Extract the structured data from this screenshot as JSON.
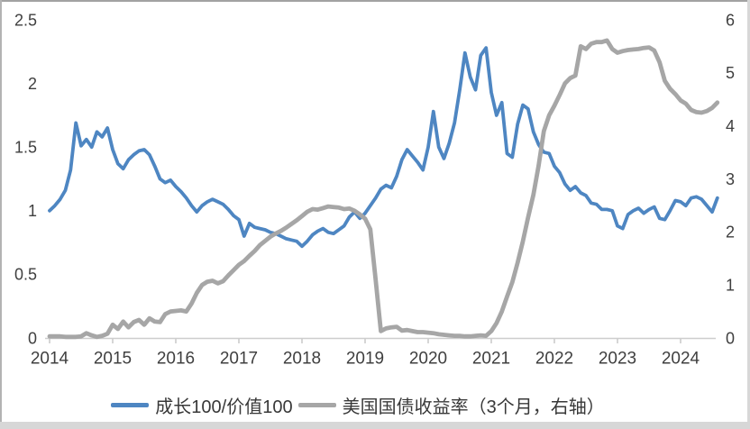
{
  "chart_data": {
    "type": "line",
    "title": "",
    "grid": false,
    "legend_position": "bottom",
    "frequency": "monthly",
    "x": [
      "2014-01",
      "2014-02",
      "2014-03",
      "2014-04",
      "2014-05",
      "2014-06",
      "2014-07",
      "2014-08",
      "2014-09",
      "2014-10",
      "2014-11",
      "2014-12",
      "2015-01",
      "2015-02",
      "2015-03",
      "2015-04",
      "2015-05",
      "2015-06",
      "2015-07",
      "2015-08",
      "2015-09",
      "2015-10",
      "2015-11",
      "2015-12",
      "2016-01",
      "2016-02",
      "2016-03",
      "2016-04",
      "2016-05",
      "2016-06",
      "2016-07",
      "2016-08",
      "2016-09",
      "2016-10",
      "2016-11",
      "2016-12",
      "2017-01",
      "2017-02",
      "2017-03",
      "2017-04",
      "2017-05",
      "2017-06",
      "2017-07",
      "2017-08",
      "2017-09",
      "2017-10",
      "2017-11",
      "2017-12",
      "2018-01",
      "2018-02",
      "2018-03",
      "2018-04",
      "2018-05",
      "2018-06",
      "2018-07",
      "2018-08",
      "2018-09",
      "2018-10",
      "2018-11",
      "2018-12",
      "2019-01",
      "2019-02",
      "2019-03",
      "2019-04",
      "2019-05",
      "2019-06",
      "2019-07",
      "2019-08",
      "2019-09",
      "2019-10",
      "2019-11",
      "2019-12",
      "2020-01",
      "2020-02",
      "2020-03",
      "2020-04",
      "2020-05",
      "2020-06",
      "2020-07",
      "2020-08",
      "2020-09",
      "2020-10",
      "2020-11",
      "2020-12",
      "2021-01",
      "2021-02",
      "2021-03",
      "2021-04",
      "2021-05",
      "2021-06",
      "2021-07",
      "2021-08",
      "2021-09",
      "2021-10",
      "2021-11",
      "2021-12",
      "2022-01",
      "2022-02",
      "2022-03",
      "2022-04",
      "2022-05",
      "2022-06",
      "2022-07",
      "2022-08",
      "2022-09",
      "2022-10",
      "2022-11",
      "2022-12",
      "2023-01",
      "2023-02",
      "2023-03",
      "2023-04",
      "2023-05",
      "2023-06",
      "2023-07",
      "2023-08",
      "2023-09",
      "2023-10",
      "2023-11",
      "2023-12",
      "2024-01",
      "2024-02",
      "2024-03",
      "2024-04",
      "2024-05",
      "2024-06",
      "2024-07",
      "2024-08"
    ],
    "series": [
      {
        "name": "成长100/价值100",
        "axis": "left",
        "color": "#4e86c2",
        "stroke_width": 3.8,
        "values": [
          1.0,
          1.04,
          1.09,
          1.16,
          1.32,
          1.69,
          1.51,
          1.56,
          1.5,
          1.62,
          1.58,
          1.65,
          1.48,
          1.37,
          1.33,
          1.4,
          1.44,
          1.47,
          1.48,
          1.44,
          1.35,
          1.25,
          1.22,
          1.24,
          1.19,
          1.15,
          1.1,
          1.04,
          0.99,
          1.04,
          1.07,
          1.09,
          1.07,
          1.05,
          1.01,
          0.96,
          0.93,
          0.8,
          0.9,
          0.87,
          0.86,
          0.85,
          0.83,
          0.82,
          0.8,
          0.78,
          0.77,
          0.76,
          0.72,
          0.76,
          0.81,
          0.84,
          0.86,
          0.83,
          0.82,
          0.85,
          0.88,
          0.95,
          0.99,
          0.94,
          0.98,
          1.04,
          1.1,
          1.17,
          1.2,
          1.18,
          1.27,
          1.4,
          1.48,
          1.43,
          1.38,
          1.32,
          1.5,
          1.78,
          1.5,
          1.41,
          1.53,
          1.69,
          1.95,
          2.24,
          2.05,
          1.95,
          2.22,
          2.28,
          1.93,
          1.75,
          1.85,
          1.45,
          1.42,
          1.68,
          1.83,
          1.8,
          1.62,
          1.52,
          1.46,
          1.45,
          1.35,
          1.3,
          1.21,
          1.16,
          1.19,
          1.14,
          1.12,
          1.06,
          1.05,
          1.01,
          1.01,
          1.0,
          0.88,
          0.86,
          0.97,
          1.0,
          1.02,
          0.98,
          1.01,
          1.03,
          0.94,
          0.93,
          1.0,
          1.08,
          1.07,
          1.04,
          1.1,
          1.11,
          1.09,
          1.04,
          0.99,
          1.1
        ]
      },
      {
        "name": "美国国债收益率（3个月，右轴）",
        "axis": "right",
        "color": "#a6a6a6",
        "stroke_width": 4.8,
        "values": [
          0.03,
          0.03,
          0.03,
          0.02,
          0.02,
          0.02,
          0.03,
          0.09,
          0.05,
          0.02,
          0.04,
          0.08,
          0.25,
          0.17,
          0.31,
          0.2,
          0.3,
          0.34,
          0.25,
          0.37,
          0.31,
          0.3,
          0.45,
          0.5,
          0.51,
          0.52,
          0.5,
          0.65,
          0.85,
          1.0,
          1.06,
          1.08,
          1.03,
          1.07,
          1.18,
          1.28,
          1.38,
          1.45,
          1.55,
          1.64,
          1.75,
          1.83,
          1.91,
          1.97,
          2.02,
          2.08,
          2.15,
          2.22,
          2.3,
          2.38,
          2.43,
          2.42,
          2.45,
          2.48,
          2.47,
          2.46,
          2.43,
          2.44,
          2.4,
          2.33,
          2.25,
          2.05,
          1.1,
          0.13,
          0.18,
          0.2,
          0.21,
          0.14,
          0.15,
          0.13,
          0.11,
          0.11,
          0.1,
          0.09,
          0.07,
          0.06,
          0.05,
          0.04,
          0.04,
          0.03,
          0.03,
          0.04,
          0.05,
          0.04,
          0.13,
          0.28,
          0.5,
          0.78,
          1.05,
          1.42,
          1.82,
          2.27,
          2.7,
          3.25,
          3.9,
          4.2,
          4.38,
          4.58,
          4.8,
          4.9,
          4.95,
          5.5,
          5.45,
          5.55,
          5.58,
          5.58,
          5.61,
          5.45,
          5.38,
          5.41,
          5.43,
          5.44,
          5.45,
          5.47,
          5.48,
          5.42,
          5.2,
          4.85,
          4.7,
          4.6,
          4.48,
          4.42,
          4.3,
          4.26,
          4.25,
          4.28,
          4.34,
          4.44
        ]
      }
    ],
    "left_axis": {
      "min": 0,
      "max": 2.5,
      "ticks": [
        0,
        0.5,
        1,
        1.5,
        2,
        2.5
      ],
      "tick_labels": [
        "0",
        "0.5",
        "1",
        "1.5",
        "2",
        "2.5"
      ]
    },
    "right_axis": {
      "min": 0,
      "max": 6,
      "ticks": [
        0,
        1,
        2,
        3,
        4,
        5,
        6
      ],
      "tick_labels": [
        "0",
        "1",
        "2",
        "3",
        "4",
        "5",
        "6"
      ]
    },
    "x_axis": {
      "tick_labels": [
        "2014",
        "2015",
        "2016",
        "2017",
        "2018",
        "2019",
        "2020",
        "2021",
        "2022",
        "2023",
        "2024"
      ]
    }
  },
  "colors": {
    "axis_line": "#cdcdcd",
    "tick_mark": "#c9c9c9",
    "label_text": "#3f3f3f",
    "frame_edge": "#d7d7d7"
  }
}
